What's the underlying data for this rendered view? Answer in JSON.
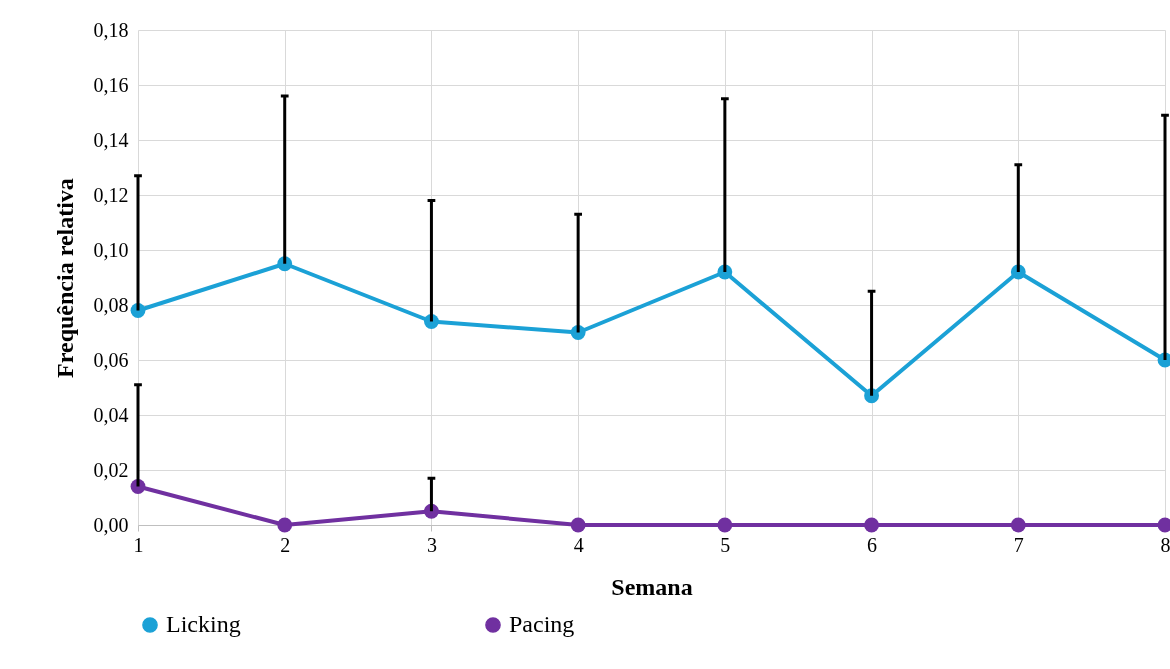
{
  "chart_data": {
    "type": "line",
    "xlabel": "Semana",
    "ylabel": "Frequência relativa",
    "x": [
      1,
      2,
      3,
      4,
      5,
      6,
      7,
      8
    ],
    "series": [
      {
        "name": "Licking",
        "color": "#1ba1d6",
        "values": [
          0.078,
          0.095,
          0.074,
          0.07,
          0.092,
          0.047,
          0.092,
          0.06
        ],
        "errors": [
          [
            0.078,
            0.127
          ],
          [
            0.095,
            0.156
          ],
          [
            0.074,
            0.118
          ],
          [
            0.07,
            0.113
          ],
          [
            0.092,
            0.155
          ],
          [
            0.047,
            0.085
          ],
          [
            0.092,
            0.131
          ],
          [
            0.06,
            0.149
          ]
        ]
      },
      {
        "name": "Pacing",
        "color": "#7030a0",
        "values": [
          0.014,
          0,
          0.005,
          0,
          0,
          0,
          0,
          0
        ],
        "errors": [
          [
            0.014,
            0.051
          ],
          null,
          [
            0.005,
            0.017
          ],
          null,
          null,
          null,
          null,
          null
        ]
      }
    ],
    "xlim": [
      1,
      8
    ],
    "xticks": [
      1,
      2,
      3,
      4,
      5,
      6,
      7,
      8
    ],
    "ylim": [
      0,
      0.18
    ],
    "yticks": [
      {
        "value": 0,
        "label": "0,00"
      },
      {
        "value": 0.02,
        "label": "0,02"
      },
      {
        "value": 0.04,
        "label": "0,04"
      },
      {
        "value": 0.06,
        "label": "0,06"
      },
      {
        "value": 0.08,
        "label": "0,08"
      },
      {
        "value": 0.1,
        "label": "0,10"
      },
      {
        "value": 0.12,
        "label": "0,12"
      },
      {
        "value": 0.14,
        "label": "0,14"
      },
      {
        "value": 0.16,
        "label": "0,16"
      },
      {
        "value": 0.18,
        "label": "0,18"
      }
    ],
    "grid": true,
    "legend": "bottom",
    "marker": "circle",
    "line_style": "solid"
  }
}
